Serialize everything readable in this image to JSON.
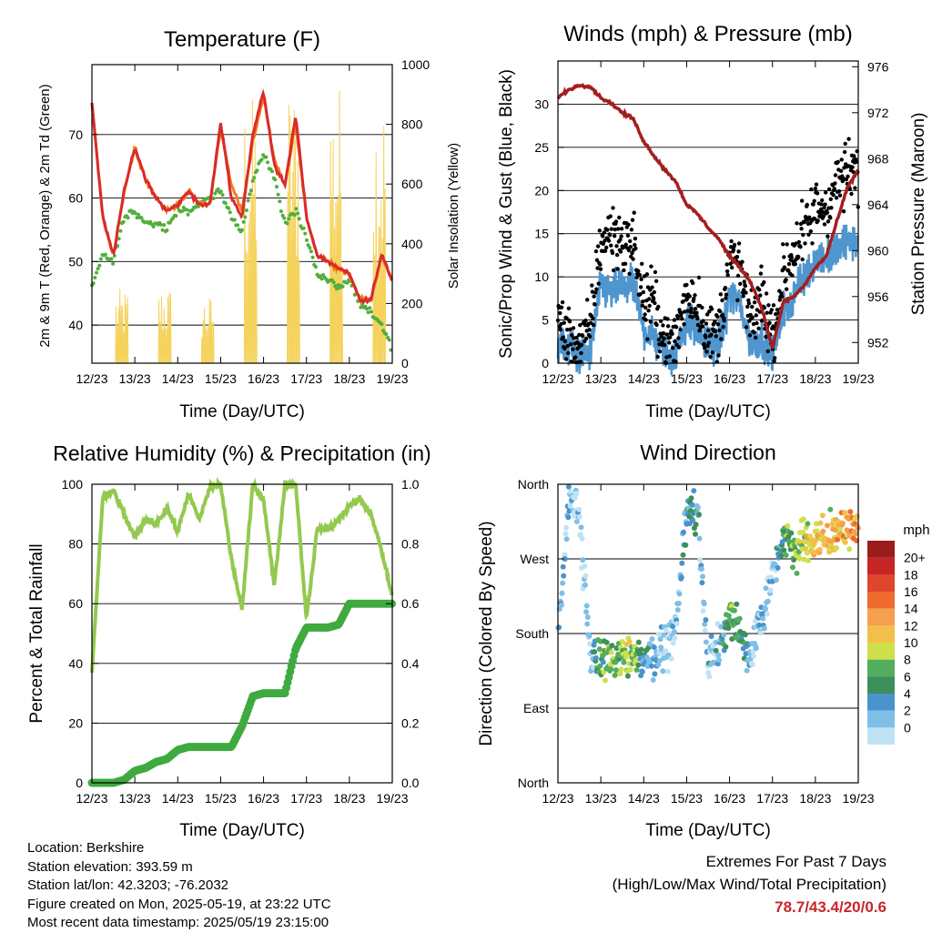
{
  "panels": {
    "temperature": {
      "title": "Temperature (F)",
      "ylabel_left": "2m & 9m T (Red, Orange) & 2m Td (Green)",
      "ylabel_right": "Solar Insolation (Yellow)",
      "xlabel": "Time (Day/UTC)"
    },
    "winds": {
      "title": "Winds (mph) & Pressure (mb)",
      "ylabel_left": "Sonic/Prop Wind & Gust (Blue, Black)",
      "ylabel_right": "Station Pressure (Maroon)",
      "xlabel": "Time (Day/UTC)"
    },
    "humidity": {
      "title": "Relative Humidity (%) & Precipitation (in)",
      "ylabel_left": "Percent & Total Rainfall",
      "xlabel": "Time (Day/UTC)"
    },
    "direction": {
      "title": "Wind Direction",
      "ylabel_left": "Direction (Colored By Speed)",
      "xlabel": "Time (Day/UTC)",
      "legend_title": "mph"
    }
  },
  "x_ticks": [
    "12/23",
    "13/23",
    "14/23",
    "15/23",
    "16/23",
    "17/23",
    "18/23",
    "19/23"
  ],
  "station": {
    "location": "Location: Berkshire",
    "elevation": "Station elevation: 393.59 m",
    "latlon": "Station lat/lon: 42.3203; -76.2032",
    "created": "Figure created on Mon, 2025-05-19, at 23:22 UTC",
    "timestamp": "Most recent data timestamp: 2025/05/19 23:15:00"
  },
  "extremes": {
    "line1": "Extremes For Past 7 Days",
    "line2": "(High/Low/Max Wind/Total Precipitation)",
    "values": "78.7/43.4/20/0.6"
  },
  "colors": {
    "temp_2m": "#d92b2b",
    "temp_9m": "#f07c1f",
    "dewpoint": "#52ae3c",
    "solar": "#f5d25c",
    "gust": "#000000",
    "wind": "#4f96cf",
    "pressure": "#a31f1f",
    "rh": "#93c94f",
    "precip": "#3faa3f",
    "dir_scale": [
      "#bfe3f5",
      "#7fbfe6",
      "#4a93cc",
      "#3e8f5a",
      "#52ae5e",
      "#cfe04a",
      "#f2c04a",
      "#f5a04e",
      "#ef6a2e",
      "#e0452e",
      "#c72525",
      "#9c1b1b"
    ]
  },
  "chart_data": [
    {
      "type": "line",
      "panel": "temperature",
      "xlabel": "Time (Day/UTC)",
      "ylabel": "2m & 9m T (Red, Orange) & 2m Td (Green)",
      "y2label": "Solar Insolation (Yellow)",
      "x": [
        12.0,
        12.25,
        12.5,
        12.75,
        13.0,
        13.25,
        13.5,
        13.75,
        14.0,
        14.25,
        14.5,
        14.75,
        15.0,
        15.25,
        15.5,
        15.75,
        16.0,
        16.25,
        16.5,
        16.75,
        17.0,
        17.25,
        17.5,
        17.75,
        18.0,
        18.25,
        18.5,
        18.75,
        19.0
      ],
      "series": [
        {
          "name": "2m T",
          "values": [
            75,
            57,
            51,
            61,
            68,
            63,
            60,
            58,
            59,
            61,
            59,
            59,
            72,
            60,
            57,
            70,
            77,
            65,
            62,
            73,
            57,
            51,
            50,
            49,
            48,
            44,
            44,
            51,
            47
          ]
        },
        {
          "name": "9m T",
          "values": [
            75,
            57,
            51,
            61,
            68,
            63,
            60,
            58,
            59,
            61,
            59,
            59,
            71,
            62,
            58,
            69,
            76,
            66,
            62,
            72,
            57,
            51,
            50,
            49,
            48,
            44,
            44,
            51,
            47
          ]
        },
        {
          "name": "2m Td",
          "values": [
            46,
            51,
            50,
            57,
            58,
            56,
            56,
            55,
            58,
            58,
            59,
            60,
            61,
            57,
            55,
            63,
            67,
            63,
            56,
            58,
            54,
            48,
            47,
            46,
            47,
            43,
            42,
            40,
            36
          ]
        },
        {
          "name": "Solar Insolation",
          "axis": "right",
          "values": [
            0,
            0,
            250,
            0,
            0,
            200,
            0,
            200,
            0,
            0,
            0,
            250,
            900,
            0,
            0,
            900,
            0,
            900,
            0,
            0,
            0,
            0,
            150,
            0,
            0,
            0,
            0,
            900,
            0
          ]
        }
      ],
      "xlim": [
        12,
        19
      ],
      "ylim": [
        34,
        81
      ],
      "y2lim": [
        0,
        1000
      ],
      "yticks": [
        40,
        50,
        60,
        70
      ],
      "y2ticks": [
        0,
        200,
        400,
        600,
        800,
        1000
      ]
    },
    {
      "type": "line",
      "panel": "winds",
      "xlabel": "Time (Day/UTC)",
      "ylabel": "Sonic/Prop Wind & Gust (Blue, Black)",
      "y2label": "Station Pressure (Maroon)",
      "x": [
        12.0,
        12.25,
        12.5,
        12.75,
        13.0,
        13.25,
        13.5,
        13.75,
        14.0,
        14.25,
        14.5,
        14.75,
        15.0,
        15.25,
        15.5,
        15.75,
        16.0,
        16.25,
        16.5,
        16.75,
        17.0,
        17.25,
        17.5,
        17.75,
        18.0,
        18.25,
        18.5,
        18.75,
        19.0
      ],
      "series": [
        {
          "name": "Gust",
          "values": [
            5,
            3,
            2,
            4,
            14,
            15,
            14,
            14,
            7,
            7,
            2,
            3,
            8,
            7,
            3,
            4,
            12,
            11,
            4,
            8,
            3,
            10,
            13,
            15,
            18,
            18,
            21,
            22,
            22
          ]
        },
        {
          "name": "Wind",
          "values": [
            2,
            2,
            1,
            1,
            9,
            8,
            9,
            9,
            4,
            3,
            1,
            1,
            5,
            4,
            2,
            2,
            8,
            7,
            2,
            3,
            1,
            6,
            8,
            10,
            12,
            12,
            13,
            14,
            14
          ]
        },
        {
          "name": "Station Pressure",
          "axis": "right",
          "values": [
            973.3,
            974.0,
            974.4,
            974.3,
            973.3,
            972.8,
            972.0,
            971.5,
            969.5,
            968.2,
            967.0,
            966.0,
            964.0,
            963.2,
            962.0,
            961.0,
            959.5,
            958.5,
            957.2,
            955.0,
            951.5,
            955.5,
            956.0,
            957.0,
            958.5,
            959.5,
            962.5,
            965.5,
            967.0
          ]
        }
      ],
      "xlim": [
        12,
        19
      ],
      "ylim": [
        0,
        35
      ],
      "y2lim": [
        950.2,
        976.5
      ],
      "yticks": [
        0,
        5,
        10,
        15,
        20,
        25,
        30
      ],
      "y2ticks": [
        952,
        956,
        960,
        964,
        968,
        972,
        976
      ]
    },
    {
      "type": "line",
      "panel": "humidity",
      "xlabel": "Time (Day/UTC)",
      "ylabel": "Percent & Total Rainfall",
      "x": [
        12.0,
        12.25,
        12.5,
        12.75,
        13.0,
        13.25,
        13.5,
        13.75,
        14.0,
        14.25,
        14.5,
        14.75,
        15.0,
        15.25,
        15.5,
        15.75,
        16.0,
        16.25,
        16.5,
        16.75,
        17.0,
        17.25,
        17.5,
        17.75,
        18.0,
        18.25,
        18.5,
        18.75,
        19.0
      ],
      "series": [
        {
          "name": "Relative Humidity",
          "values": [
            37,
            95,
            98,
            90,
            82,
            88,
            87,
            92,
            84,
            97,
            88,
            99,
            100,
            75,
            58,
            100,
            95,
            66,
            100,
            100,
            55,
            85,
            85,
            88,
            93,
            95,
            90,
            78,
            62
          ]
        },
        {
          "name": "Total Precipitation",
          "axis": "right",
          "values": [
            0,
            0,
            0,
            0.01,
            0.04,
            0.05,
            0.07,
            0.08,
            0.11,
            0.12,
            0.12,
            0.12,
            0.12,
            0.12,
            0.19,
            0.29,
            0.3,
            0.3,
            0.3,
            0.45,
            0.52,
            0.52,
            0.52,
            0.53,
            0.6,
            0.6,
            0.6,
            0.6,
            0.6
          ]
        }
      ],
      "xlim": [
        12,
        19
      ],
      "ylim": [
        0,
        100
      ],
      "y2lim": [
        0,
        1
      ],
      "yticks": [
        0,
        20,
        40,
        60,
        80,
        100
      ],
      "y2ticks": [
        0.0,
        0.2,
        0.4,
        0.6,
        0.8,
        1.0
      ]
    },
    {
      "type": "scatter",
      "panel": "direction",
      "xlabel": "Time (Day/UTC)",
      "ylabel": "Direction (Colored By Speed)",
      "y_tick_labels": [
        "North",
        "East",
        "South",
        "West",
        "North"
      ],
      "x": [
        12.0,
        12.25,
        12.5,
        12.75,
        13.0,
        13.25,
        13.5,
        13.75,
        14.0,
        14.25,
        14.5,
        14.75,
        15.0,
        15.25,
        15.5,
        15.75,
        16.0,
        16.25,
        16.5,
        16.75,
        17.0,
        17.25,
        17.5,
        17.75,
        18.0,
        18.25,
        18.5,
        18.75,
        19.0
      ],
      "series": [
        {
          "name": "Direction",
          "values": [
            175,
            340,
            325,
            150,
            150,
            150,
            150,
            150,
            150,
            155,
            165,
            180,
            330,
            320,
            150,
            160,
            200,
            180,
            150,
            200,
            250,
            300,
            280,
            290,
            295,
            295,
            300,
            305,
            310
          ]
        },
        {
          "name": "Speed",
          "values": [
            2,
            2,
            1,
            1,
            8,
            8,
            9,
            9,
            4,
            3,
            1,
            1,
            5,
            4,
            2,
            2,
            8,
            7,
            2,
            3,
            1,
            6,
            8,
            10,
            12,
            12,
            13,
            14,
            14
          ]
        }
      ],
      "legend_values": [
        "20+",
        "18",
        "16",
        "14",
        "12",
        "10",
        "8",
        "6",
        "4",
        "2",
        "0"
      ],
      "xlim": [
        12,
        19
      ],
      "ylim": [
        0,
        360
      ]
    }
  ]
}
